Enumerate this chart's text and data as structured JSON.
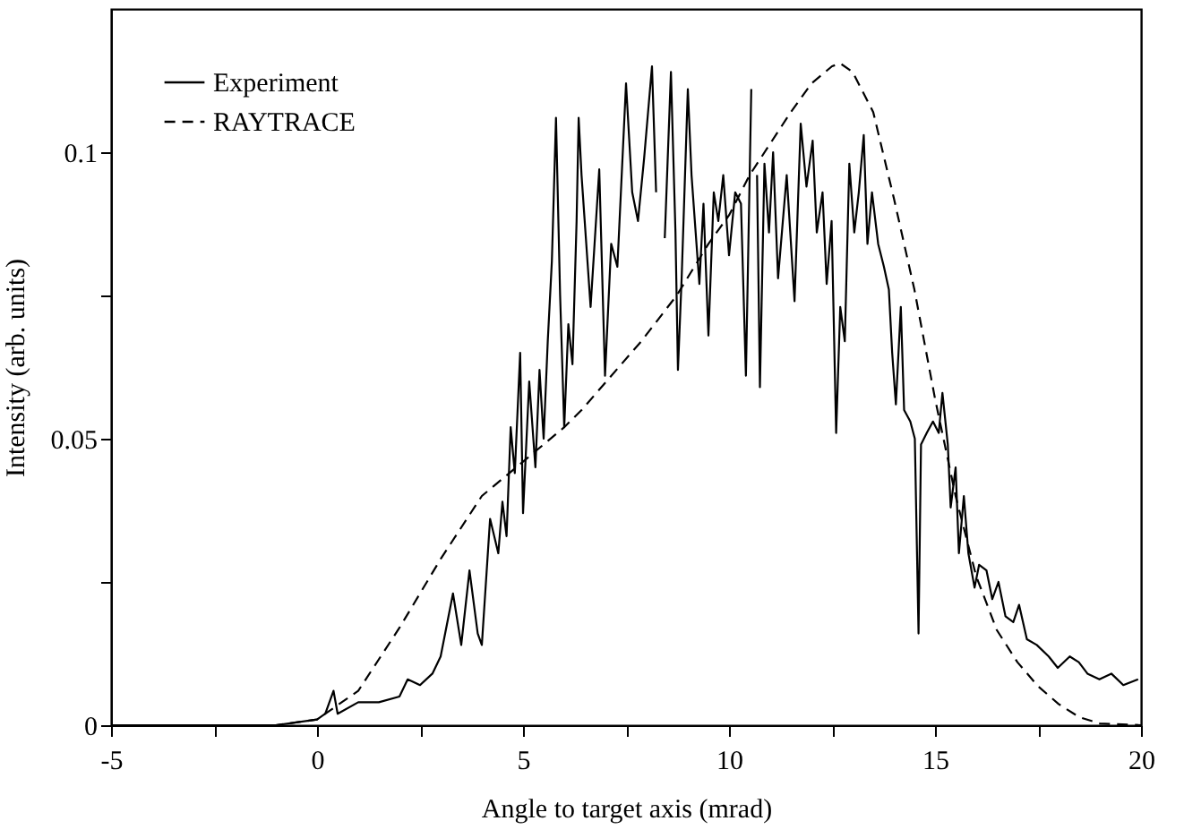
{
  "chart_data": {
    "type": "line",
    "xlabel": "Angle to target axis (mrad)",
    "ylabel": "Intensity (arb. units)",
    "xlim": [
      -5,
      20
    ],
    "xticks": [
      -5,
      {
        "value": -2.5,
        "label": null
      },
      0,
      {
        "value": 2.5,
        "label": null
      },
      5,
      {
        "value": 7.5,
        "label": null
      },
      10,
      {
        "value": 12.5,
        "label": null
      },
      15,
      {
        "value": 17.5,
        "label": null
      },
      20
    ],
    "ylim": [
      0,
      0.125
    ],
    "yticks": [
      0,
      {
        "value": 0.025,
        "label": null
      },
      0.05,
      {
        "value": 0.075,
        "label": null
      },
      0.1
    ],
    "legend": "top left",
    "grid": false,
    "series": [
      {
        "name": "Experiment",
        "color": "#000000",
        "line_style": "solid",
        "x": [
          -5,
          -1,
          0,
          0.2,
          0.4,
          0.5,
          1.0,
          1.5,
          2.0,
          2.2,
          2.5,
          2.8,
          3.0,
          3.3,
          3.5,
          3.7,
          3.9,
          4.0,
          4.2,
          4.4,
          4.5,
          4.6,
          4.7,
          4.8,
          4.93,
          5.0,
          5.15,
          5.3,
          5.4,
          5.5,
          5.6,
          5.7,
          5.8,
          5.9,
          6.0,
          6.1,
          6.2,
          6.3,
          6.35,
          6.42,
          6.64,
          6.85,
          6.99,
          7.14,
          7.29,
          7.5,
          7.65,
          7.79,
          7.94,
          8.13,
          8.23,
          8.3,
          8.44,
          8.59,
          8.7,
          8.76,
          8.85,
          9.0,
          9.09,
          9.28,
          9.38,
          9.5,
          9.63,
          9.74,
          9.86,
          10.0,
          10.15,
          10.29,
          10.41,
          10.54,
          10.61,
          10.68,
          10.75,
          10.86,
          10.97,
          11.07,
          11.19,
          11.4,
          11.59,
          11.74,
          11.88,
          12.03,
          12.13,
          12.27,
          12.37,
          12.49,
          12.6,
          12.7,
          12.81,
          12.92,
          13.04,
          13.15,
          13.27,
          13.36,
          13.47,
          13.62,
          13.76,
          13.88,
          13.96,
          14.05,
          14.17,
          14.25,
          14.4,
          14.51,
          14.6,
          14.66,
          14.8,
          14.95,
          15.09,
          15.18,
          15.31,
          15.38,
          15.5,
          15.58,
          15.7,
          15.81,
          15.96,
          16.07,
          16.25,
          16.39,
          16.54,
          16.71,
          16.9,
          17.04,
          17.23,
          17.47,
          17.76,
          17.98,
          18.27,
          18.49,
          18.7,
          18.99,
          19.28,
          19.57,
          19.93
        ],
        "values": [
          0,
          0,
          0.001,
          0.002,
          0.006,
          0.002,
          0.004,
          0.004,
          0.005,
          0.008,
          0.007,
          0.009,
          0.012,
          0.023,
          0.014,
          0.027,
          0.016,
          0.014,
          0.036,
          0.03,
          0.039,
          0.033,
          0.052,
          0.044,
          0.065,
          0.037,
          0.06,
          0.045,
          0.062,
          0.05,
          0.067,
          0.081,
          0.106,
          0.075,
          0.052,
          0.07,
          0.063,
          0.088,
          0.106,
          0.096,
          0.073,
          0.097,
          0.061,
          0.084,
          0.08,
          0.112,
          0.093,
          0.088,
          0.099,
          0.115,
          0.093,
          null,
          0.085,
          0.114,
          0.086,
          0.062,
          0.078,
          0.111,
          0.096,
          0.077,
          0.091,
          0.068,
          0.093,
          0.088,
          0.096,
          0.082,
          0.093,
          0.091,
          0.061,
          0.111,
          null,
          0.096,
          0.059,
          0.098,
          0.086,
          0.1,
          0.078,
          0.096,
          0.074,
          0.105,
          0.094,
          0.102,
          0.086,
          0.093,
          0.077,
          0.088,
          0.051,
          0.073,
          0.067,
          0.098,
          0.086,
          0.093,
          0.103,
          0.084,
          0.093,
          0.084,
          0.08,
          0.076,
          0.065,
          0.056,
          0.073,
          0.055,
          0.053,
          0.05,
          0.016,
          0.049,
          0.051,
          0.053,
          0.051,
          0.058,
          0.049,
          0.038,
          0.045,
          0.03,
          0.04,
          0.03,
          0.024,
          0.028,
          0.027,
          0.022,
          0.025,
          0.019,
          0.018,
          0.021,
          0.015,
          0.014,
          0.012,
          0.01,
          0.012,
          0.011,
          0.009,
          0.008,
          0.009,
          0.007,
          0.008
        ]
      },
      {
        "name": "RAYTRACE",
        "color": "#000000",
        "line_style": "dashed",
        "x": [
          -5,
          -1,
          0,
          1,
          2,
          3,
          4,
          5,
          6,
          6.42,
          7.87,
          8.73,
          9.5,
          10,
          10.5,
          11,
          11.5,
          12,
          12.5,
          12.7,
          13,
          13.5,
          14,
          14.5,
          15,
          15.5,
          16,
          16.5,
          17,
          17.5,
          18,
          18.5,
          19,
          20
        ],
        "values": [
          0,
          0,
          0.001,
          0.006,
          0.017,
          0.029,
          0.04,
          0.046,
          0.052,
          0.055,
          0.067,
          0.075,
          0.084,
          0.089,
          0.096,
          0.1015,
          0.107,
          0.112,
          0.115,
          0.1155,
          0.114,
          0.107,
          0.092,
          0.076,
          0.057,
          0.04,
          0.026,
          0.0166,
          0.011,
          0.0068,
          0.0037,
          0.0014,
          0.0003,
          0
        ]
      }
    ]
  }
}
